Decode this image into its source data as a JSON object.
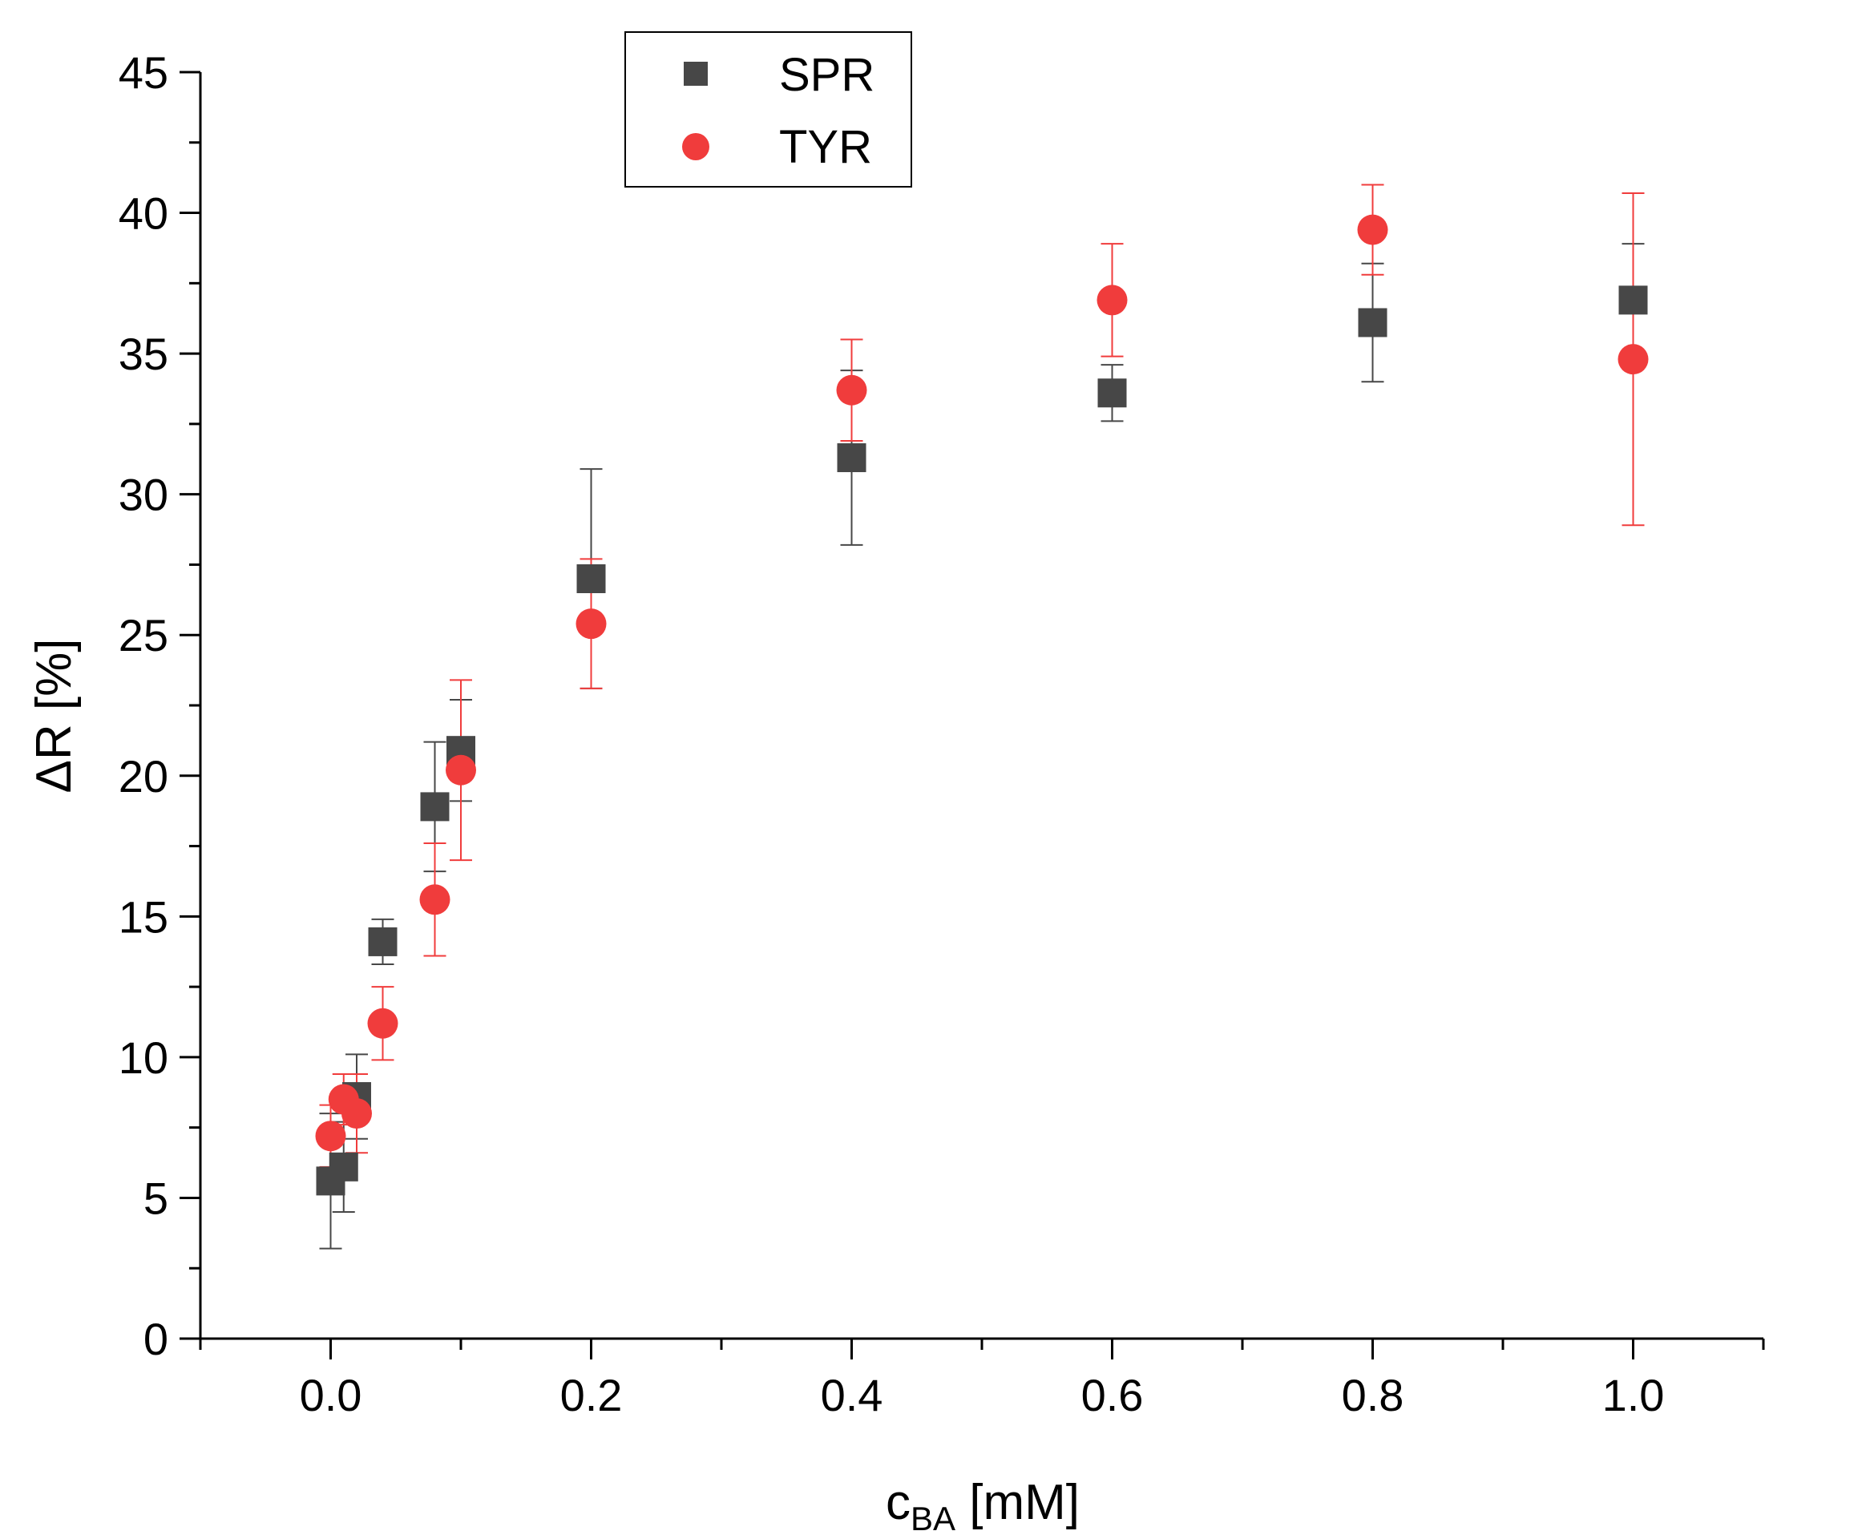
{
  "chart_data": {
    "type": "scatter",
    "title": "",
    "xlabel": {
      "main": "c",
      "sub": "BA",
      "unit": " [mM]"
    },
    "ylabel": "ΔR [%]",
    "xlim": [
      -0.1,
      1.1
    ],
    "ylim": [
      0,
      45
    ],
    "xticks": [
      0.0,
      0.2,
      0.4,
      0.6,
      0.8,
      1.0
    ],
    "xtick_labels": [
      "0.0",
      "0.2",
      "0.4",
      "0.6",
      "0.8",
      "1.0"
    ],
    "yticks": [
      0,
      5,
      10,
      15,
      20,
      25,
      30,
      35,
      40,
      45
    ],
    "ytick_labels": [
      "0",
      "5",
      "10",
      "15",
      "20",
      "25",
      "30",
      "35",
      "40",
      "45"
    ],
    "grid": false,
    "legend_position": "top-center",
    "series": [
      {
        "name": "SPR",
        "marker": "square",
        "color": "#474747",
        "x": [
          0.0,
          0.01,
          0.02,
          0.04,
          0.08,
          0.1,
          0.2,
          0.4,
          0.6,
          0.8,
          1.0
        ],
        "y": [
          5.6,
          6.1,
          8.6,
          14.1,
          18.9,
          20.9,
          27.0,
          31.3,
          33.6,
          36.1,
          36.9
        ],
        "err": [
          2.4,
          1.6,
          1.5,
          0.8,
          2.3,
          1.8,
          3.9,
          3.1,
          1.0,
          2.1,
          2.0
        ]
      },
      {
        "name": "TYR",
        "marker": "circle",
        "color": "#f03c3c",
        "x": [
          0.0,
          0.01,
          0.02,
          0.04,
          0.08,
          0.1,
          0.2,
          0.4,
          0.6,
          0.8,
          1.0
        ],
        "y": [
          7.2,
          8.5,
          8.0,
          11.2,
          15.6,
          20.2,
          25.4,
          33.7,
          36.9,
          39.4,
          34.8
        ],
        "err": [
          1.1,
          0.9,
          1.4,
          1.3,
          2.0,
          3.2,
          2.3,
          1.8,
          2.0,
          1.6,
          5.9
        ]
      }
    ]
  }
}
